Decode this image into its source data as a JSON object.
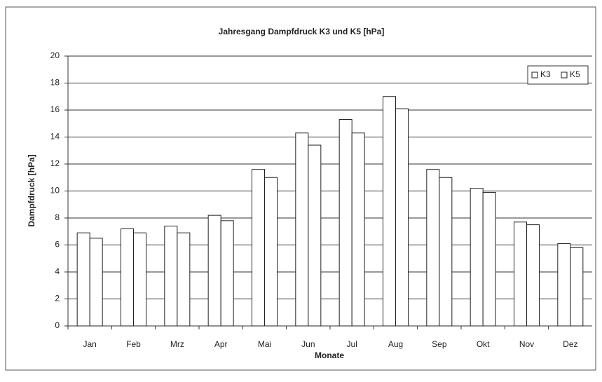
{
  "chart_data": {
    "type": "bar",
    "title": "Jahresgang Dampfdruck K3 und K5 [hPa]",
    "x_label": "Monate",
    "y_label": "Dampfdruck [hPa]",
    "categories": [
      "Jan",
      "Feb",
      "Mrz",
      "Apr",
      "Mai",
      "Jun",
      "Jul",
      "Aug",
      "Sep",
      "Okt",
      "Nov",
      "Dez"
    ],
    "series": [
      {
        "name": "K3",
        "color": "#ffffff",
        "values": [
          6.9,
          7.2,
          7.4,
          8.2,
          11.6,
          14.3,
          15.3,
          17.0,
          11.6,
          10.2,
          7.7,
          6.1
        ]
      },
      {
        "name": "K5",
        "color": "#ffffff",
        "values": [
          6.5,
          6.9,
          6.9,
          7.8,
          11.0,
          13.4,
          14.3,
          16.1,
          11.0,
          9.9,
          7.5,
          5.8
        ]
      }
    ],
    "ylim": [
      0,
      20
    ],
    "yticks": [
      0,
      2,
      4,
      6,
      8,
      10,
      12,
      14,
      16,
      18,
      20
    ],
    "grid": true,
    "legend": "upper right"
  }
}
